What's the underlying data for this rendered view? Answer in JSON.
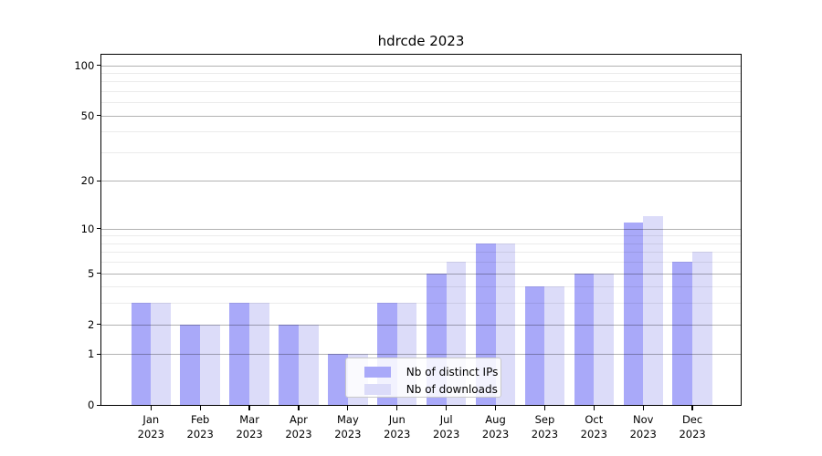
{
  "figure": {
    "background_color": "#ffffff"
  },
  "chart_data": {
    "type": "bar",
    "title": "hdrcde 2023",
    "categories": [
      "Jan 2023",
      "Feb 2023",
      "Mar 2023",
      "Apr 2023",
      "May 2023",
      "Jun 2023",
      "Jul 2023",
      "Aug 2023",
      "Sep 2023",
      "Oct 2023",
      "Nov 2023",
      "Dec 2023"
    ],
    "series": [
      {
        "name": "Nb of distinct IPs",
        "color": "#a9a9f9",
        "values": [
          3,
          2,
          3,
          2,
          1,
          3,
          5,
          8,
          4,
          5,
          11,
          6
        ]
      },
      {
        "name": "Nb of downloads",
        "color": "#dcdcf9",
        "values": [
          3,
          2,
          3,
          2,
          1,
          3,
          6,
          8,
          4,
          5,
          12,
          7
        ]
      }
    ],
    "xlabel": "",
    "ylabel": "",
    "y_scale": "log1p",
    "y_ticks": [
      0,
      1,
      2,
      5,
      10,
      20,
      50,
      100
    ],
    "y_minor_gridlines": [
      3,
      4,
      6,
      7,
      8,
      9,
      30,
      40,
      60,
      70,
      80,
      90
    ],
    "ylim": [
      0,
      116
    ],
    "grid": true,
    "legend_position": "lower center"
  }
}
